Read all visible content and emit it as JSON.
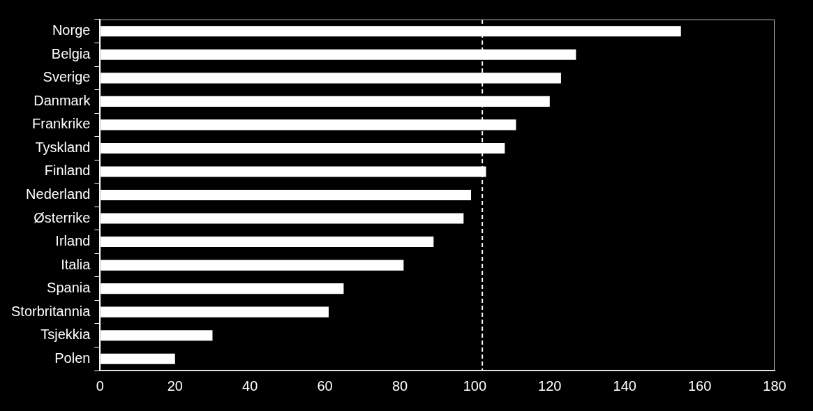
{
  "chart_data": {
    "type": "bar",
    "orientation": "horizontal",
    "categories": [
      "Norge",
      "Belgia",
      "Sverige",
      "Danmark",
      "Frankrike",
      "Tyskland",
      "Finland",
      "Nederland",
      "Østerrike",
      "Irland",
      "Italia",
      "Spania",
      "Storbritannia",
      "Tsjekkia",
      "Polen"
    ],
    "values": [
      155,
      127,
      123,
      120,
      111,
      108,
      103,
      99,
      97,
      89,
      81,
      65,
      61,
      30,
      20
    ],
    "color": "#ffffff",
    "reference_line": 102,
    "xlim": [
      0,
      180
    ],
    "xticks": [
      0,
      20,
      40,
      60,
      80,
      100,
      120,
      140,
      160,
      180
    ],
    "grid": false
  }
}
